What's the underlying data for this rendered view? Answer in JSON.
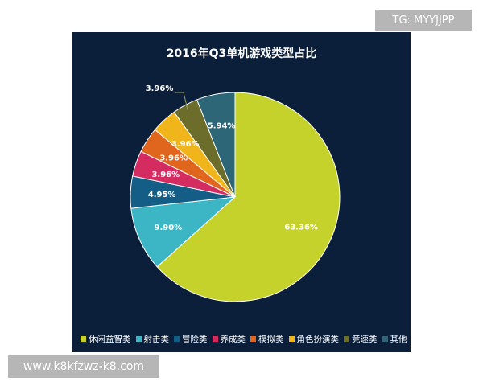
{
  "overlays": {
    "tg_text": "TG: MYYJJPP",
    "url_text": "www.k8kfzwz-k8.com"
  },
  "chart_data": {
    "type": "pie",
    "title": "2016年Q3单机游戏类型占比",
    "categories": [
      "休闲益智类",
      "射击类",
      "冒险类",
      "养成类",
      "模拟类",
      "角色扮演类",
      "竞速类",
      "其他"
    ],
    "values": [
      63.36,
      9.9,
      4.95,
      3.96,
      3.96,
      3.96,
      3.96,
      5.94
    ],
    "labels": [
      "63.36%",
      "9.90%",
      "4.95%",
      "3.96%",
      "3.96%",
      "3.96%",
      "3.96%",
      "5.94%"
    ],
    "colors": [
      "#c5d22b",
      "#3cb6c4",
      "#145d86",
      "#d42b60",
      "#e0661e",
      "#f1b51c",
      "#6c6d2a",
      "#2d6677"
    ],
    "start_angle": "12 o'clock",
    "direction": "clockwise",
    "legend_position": "bottom"
  }
}
